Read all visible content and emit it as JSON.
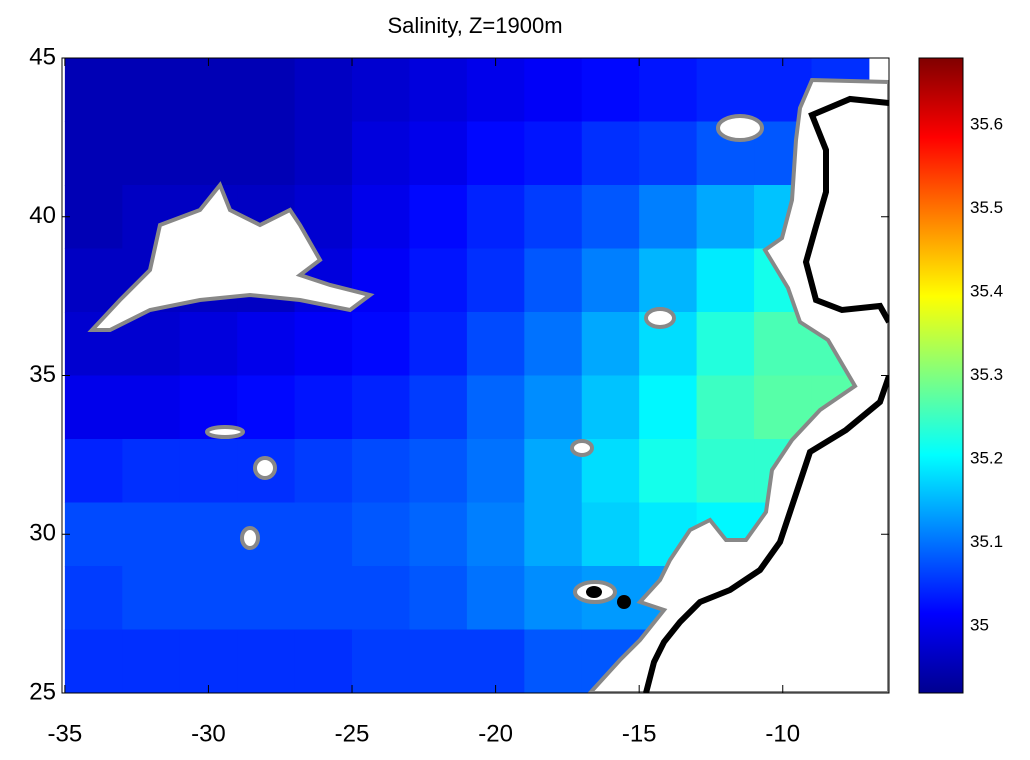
{
  "chart_data": {
    "type": "heatmap",
    "title": "Salinity, Z=1900m",
    "colormap": "jet",
    "x": [
      -34,
      -32,
      -30,
      -28,
      -26,
      -24,
      -22,
      -20,
      -18,
      -16,
      -14,
      -12,
      -10,
      -8
    ],
    "y": [
      44,
      42,
      40,
      38,
      36,
      34,
      32,
      30,
      28,
      26
    ],
    "values": [
      [
        34.96,
        34.96,
        34.96,
        34.96,
        34.97,
        34.98,
        34.99,
        35.0,
        35.01,
        35.02,
        35.03,
        35.04,
        35.04,
        35.05
      ],
      [
        34.96,
        34.96,
        34.96,
        34.96,
        34.97,
        34.99,
        35.0,
        35.02,
        35.03,
        35.05,
        35.06,
        35.08,
        35.08,
        35.08
      ],
      [
        34.96,
        34.97,
        34.97,
        34.97,
        34.98,
        35.0,
        35.02,
        35.04,
        35.06,
        35.08,
        35.11,
        35.14,
        35.16,
        35.16
      ],
      [
        34.97,
        34.97,
        34.97,
        34.97,
        34.99,
        35.01,
        35.03,
        35.05,
        35.08,
        35.11,
        35.15,
        35.19,
        35.22,
        35.22
      ],
      [
        34.98,
        34.98,
        34.99,
        35.0,
        35.01,
        35.02,
        35.04,
        35.07,
        35.1,
        35.14,
        35.18,
        35.23,
        35.26,
        35.26
      ],
      [
        35.0,
        35.0,
        35.01,
        35.02,
        35.03,
        35.04,
        35.06,
        35.09,
        35.12,
        35.16,
        35.2,
        35.25,
        35.27,
        35.27
      ],
      [
        35.04,
        35.05,
        35.05,
        35.05,
        35.06,
        35.07,
        35.08,
        35.1,
        35.14,
        35.18,
        35.22,
        35.24,
        35.24,
        35.24
      ],
      [
        35.07,
        35.07,
        35.07,
        35.07,
        35.07,
        35.08,
        35.09,
        35.11,
        35.14,
        35.17,
        35.19,
        35.2,
        35.2,
        35.2
      ],
      [
        35.06,
        35.07,
        35.07,
        35.07,
        35.07,
        35.07,
        35.08,
        35.1,
        35.12,
        35.13,
        35.13,
        35.13,
        35.13,
        35.13
      ],
      [
        35.05,
        35.05,
        35.05,
        35.05,
        35.05,
        35.06,
        35.06,
        35.06,
        35.08,
        35.08,
        35.08,
        35.08,
        35.08,
        35.08
      ]
    ],
    "xlim": [
      -35.1,
      -6.3
    ],
    "ylim": [
      25,
      45
    ],
    "xticks": [
      -35,
      -30,
      -25,
      -20,
      -15,
      -10
    ],
    "yticks": [
      25,
      30,
      35,
      40,
      45
    ],
    "clim": [
      34.92,
      35.68
    ],
    "colorbar_ticks": [
      35,
      35.1,
      35.2,
      35.3,
      35.4,
      35.5,
      35.6
    ]
  }
}
